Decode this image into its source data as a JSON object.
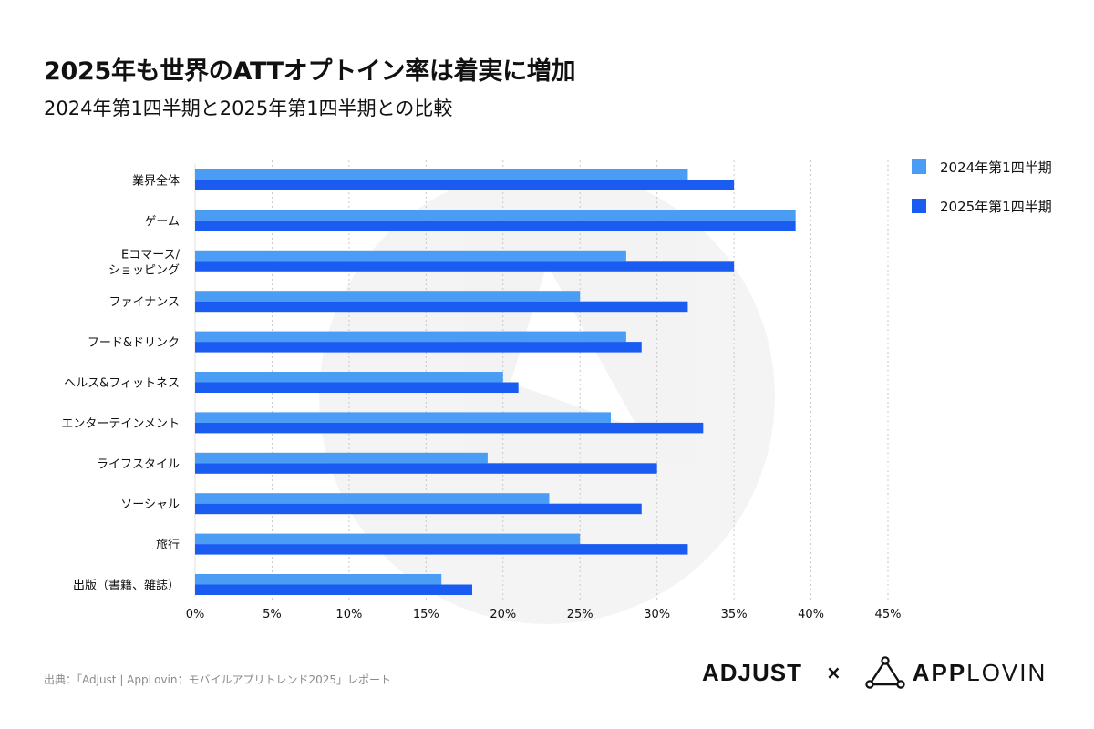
{
  "header": {
    "title": "2025年も世界のATTオプトイン率は着実に増加",
    "subtitle": "2024年第1四半期と2025年第1四半期との比較"
  },
  "chart_data": {
    "type": "bar",
    "orientation": "horizontal",
    "categories": [
      "業界全体",
      "ゲーム",
      "Eコマース/\nショッピング",
      "ファイナンス",
      "フード&ドリンク",
      "ヘルス&フィットネス",
      "エンターテインメント",
      "ライフスタイル",
      "ソーシャル",
      "旅行",
      "出版（書籍、雑誌）"
    ],
    "series": [
      {
        "name": "2024年第1四半期",
        "color": "#4a9cf5",
        "values": [
          32,
          39,
          28,
          25,
          28,
          20,
          27,
          19,
          23,
          25,
          16
        ]
      },
      {
        "name": "2025年第1四半期",
        "color": "#1a5cf2",
        "values": [
          35,
          39,
          35,
          32,
          29,
          21,
          33,
          30,
          29,
          32,
          18
        ]
      }
    ],
    "xlim": [
      0,
      45
    ],
    "xticks": [
      "0%",
      "5%",
      "10%",
      "15%",
      "20%",
      "25%",
      "30%",
      "35%",
      "40%",
      "45%"
    ],
    "grid": true,
    "legend_position": "top-right"
  },
  "footer": {
    "source": "出典：「Adjust | AppLovin：モバイルアプリトレンド2025」レポート",
    "logo_adjust": "ADJUST",
    "logo_separator": "×",
    "logo_applovin_bold": "APP",
    "logo_applovin_light": "LOVIN"
  }
}
